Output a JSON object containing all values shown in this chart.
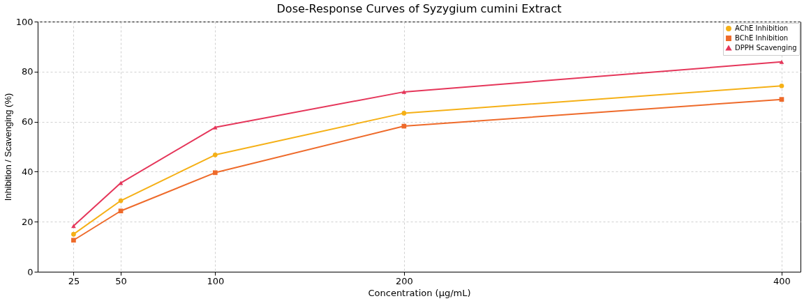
{
  "chart_data": {
    "type": "line",
    "title": "Dose-Response Curves of Syzygium cumini Extract",
    "xlabel": "Concentration (µg/mL)",
    "ylabel": "Inhibition / Scavenging (%)",
    "x": [
      25,
      50,
      100,
      200,
      400
    ],
    "series": [
      {
        "name": "AChE Inhibition",
        "color": "#f5b016",
        "marker": "circle",
        "values": [
          15.0,
          28.4,
          46.7,
          63.4,
          74.3
        ]
      },
      {
        "name": "BChE Inhibition",
        "color": "#ee6a2a",
        "marker": "square",
        "values": [
          12.6,
          24.3,
          39.6,
          58.2,
          68.9
        ]
      },
      {
        "name": "DPPH Scavenging",
        "color": "#e5365a",
        "marker": "triangle",
        "values": [
          18.3,
          35.5,
          57.7,
          71.9,
          83.9
        ]
      }
    ],
    "xlim": [
      6,
      410
    ],
    "xticks": [
      25,
      50,
      100,
      200,
      400
    ],
    "ylim": [
      0,
      100
    ],
    "yticks": [
      0,
      20,
      40,
      60,
      80,
      100
    ],
    "grid": true,
    "legend": "top right",
    "line_style": "solid"
  }
}
